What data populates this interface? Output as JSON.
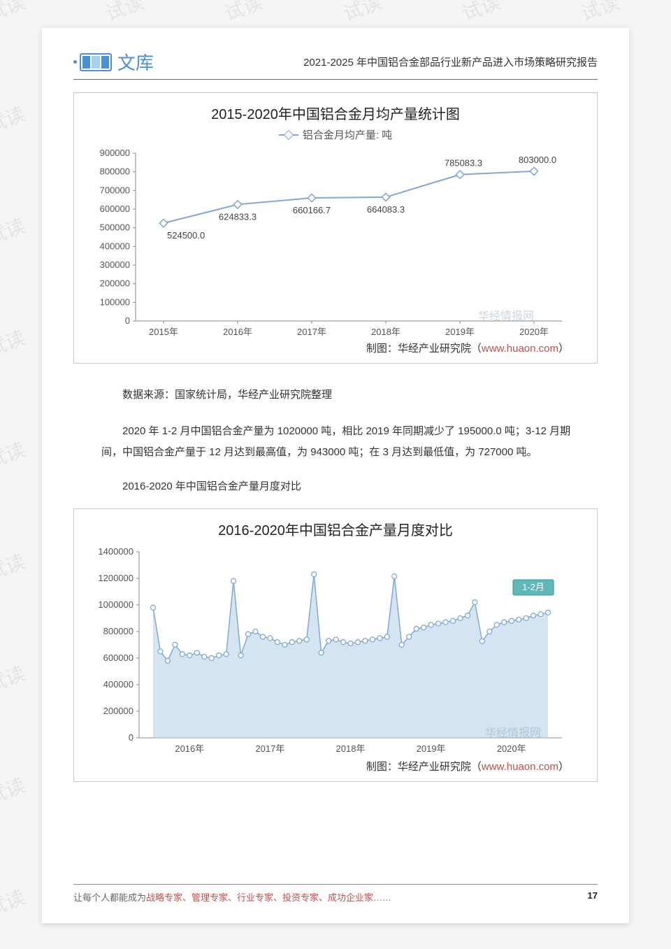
{
  "page": {
    "logo_text": "文库",
    "header_title": "2021-2025 年中国铝合金部品行业新产品进入市场策略研究报告",
    "footer_prefix": "让每个人都能成为",
    "footer_roles": "战略专家、管理专家、行业专家、投资专家、成功企业家……",
    "page_number": "17"
  },
  "watermark_text": "试读",
  "brand_watermark": "华经情报网",
  "chart1": {
    "type": "line",
    "title": "2015-2020年中国铝合金月均产量统计图",
    "legend_label": "铝合金月均产量: 吨",
    "background_color": "#ffffff",
    "border_color": "#c8c8c8",
    "line_color": "#7fa8d9",
    "marker_style": "diamond-open",
    "categories": [
      "2015年",
      "2016年",
      "2017年",
      "2018年",
      "2019年",
      "2020年"
    ],
    "values": [
      524500.0,
      624833.3,
      660166.7,
      664083.3,
      785083.3,
      803000.0
    ],
    "data_labels": [
      "524500.0",
      "624833.3",
      "660166.7",
      "664083.3",
      "785083.3",
      "803000.0"
    ],
    "ylim": [
      0,
      900000
    ],
    "ytick_step": 100000,
    "ytick_labels": [
      "0",
      "100000",
      "200000",
      "300000",
      "400000",
      "500000",
      "600000",
      "700000",
      "800000",
      "900000"
    ],
    "title_fontsize": 20,
    "label_fontsize": 13,
    "attribution_label": "制图：华经产业研究院（",
    "attribution_url": "www.huaon.com",
    "attribution_suffix": "）"
  },
  "text1": "数据来源：国家统计局，华经产业研究院整理",
  "text2": "2020 年 1-2 月中国铝合金产量为 1020000 吨，相比 2019 年同期减少了 195000.0 吨；3-12 月期间，中国铝合金产量于 12 月达到最高值，为 943000 吨；在 3 月达到最低值，为 727000 吨。",
  "text3": "2016-2020 年中国铝合金产量月度对比",
  "chart2": {
    "type": "area",
    "title": "2016-2020年中国铝合金产量月度对比",
    "background_color": "#ffffff",
    "border_color": "#c8c8c8",
    "line_color": "#7fa8d9",
    "area_color": "#b8d4e8",
    "area_opacity": 0.6,
    "marker_style": "circle-open",
    "year_labels": [
      "2016年",
      "2017年",
      "2018年",
      "2019年",
      "2020年"
    ],
    "ylim": [
      0,
      1400000
    ],
    "ytick_step": 200000,
    "ytick_labels": [
      "0",
      "200000",
      "400000",
      "600000",
      "800000",
      "1000000",
      "1200000",
      "1400000"
    ],
    "legend_box_label": "1-2月",
    "legend_box_fill": "#5fb8b8",
    "series": [
      [
        980000,
        650000,
        580000,
        700000,
        630000,
        620000,
        640000,
        610000,
        600000,
        620000,
        630000
      ],
      [
        1180000,
        620000,
        780000,
        800000,
        760000,
        750000,
        720000,
        700000,
        720000,
        730000,
        740000
      ],
      [
        1230000,
        640000,
        730000,
        740000,
        720000,
        710000,
        720000,
        730000,
        740000,
        750000,
        760000
      ],
      [
        1215000,
        700000,
        760000,
        820000,
        830000,
        850000,
        860000,
        870000,
        880000,
        900000,
        920000
      ],
      [
        1020000,
        727000,
        800000,
        850000,
        870000,
        880000,
        890000,
        900000,
        920000,
        930000,
        943000
      ]
    ],
    "title_fontsize": 20,
    "label_fontsize": 13,
    "attribution_label": "制图：华经产业研究院（",
    "attribution_url": "www.huaon.com",
    "attribution_suffix": "）"
  }
}
